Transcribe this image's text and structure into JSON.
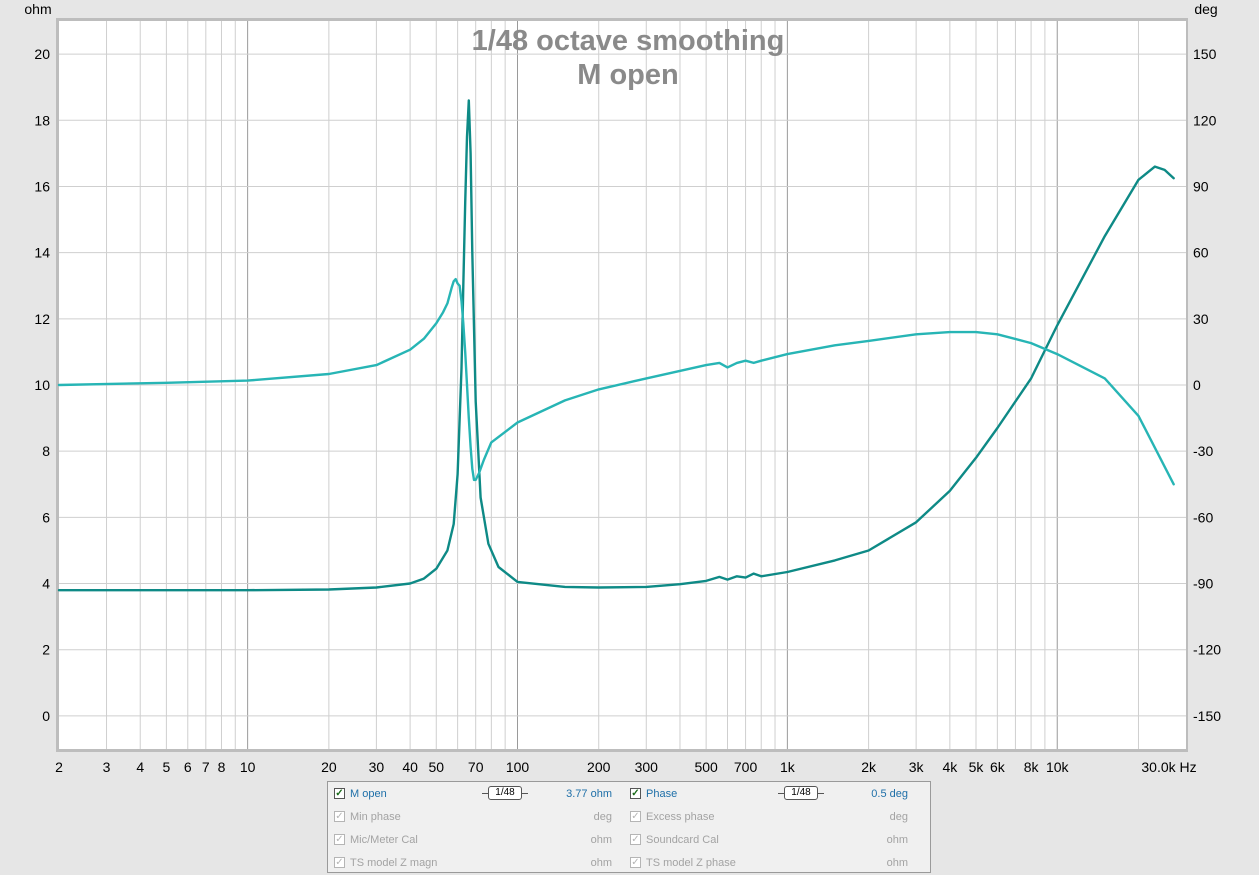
{
  "chart_data": {
    "type": "line",
    "title": "1/48 octave smoothing",
    "subtitle": "M open",
    "x_axis": {
      "unit": "Hz",
      "scale": "log",
      "range": [
        2,
        30000
      ],
      "tick_values": [
        2,
        3,
        4,
        5,
        6,
        7,
        8,
        10,
        20,
        30,
        40,
        50,
        70,
        100,
        200,
        300,
        500,
        700,
        1000,
        2000,
        3000,
        4000,
        5000,
        6000,
        8000,
        10000,
        30000
      ],
      "tick_labels": [
        "2",
        "3",
        "4",
        "5",
        "6",
        "7",
        "8",
        "10",
        "20",
        "30",
        "40",
        "50",
        "70",
        "100",
        "200",
        "300",
        "500",
        "700",
        "1k",
        "2k",
        "3k",
        "4k",
        "5k",
        "6k",
        "8k",
        "10k",
        "30.0k Hz"
      ]
    },
    "y_left": {
      "unit": "ohm",
      "range": [
        -1,
        21
      ],
      "ticks": [
        0,
        2,
        4,
        6,
        8,
        10,
        12,
        14,
        16,
        18,
        20
      ]
    },
    "y_right": {
      "unit": "deg",
      "range": [
        -165,
        165
      ],
      "ticks": [
        150,
        120,
        90,
        60,
        30,
        0,
        -30,
        -60,
        -90,
        -120,
        -150
      ]
    },
    "grid": true,
    "series": [
      {
        "name": "M open",
        "axis": "left",
        "color": "#0e8a86",
        "x": [
          2,
          5,
          10,
          20,
          30,
          40,
          45,
          50,
          55,
          58,
          60,
          62,
          63,
          64,
          65,
          66,
          67,
          68,
          70,
          73,
          78,
          85,
          100,
          150,
          200,
          300,
          400,
          500,
          560,
          600,
          650,
          700,
          750,
          800,
          1000,
          1500,
          2000,
          3000,
          4000,
          5000,
          6000,
          8000,
          10000,
          15000,
          20000,
          23000,
          25000,
          27000
        ],
        "y": [
          3.8,
          3.8,
          3.8,
          3.82,
          3.88,
          4.0,
          4.15,
          4.45,
          5.0,
          5.8,
          7.3,
          10.5,
          13.0,
          15.5,
          17.5,
          18.6,
          17.0,
          14.0,
          9.5,
          6.6,
          5.2,
          4.5,
          4.05,
          3.9,
          3.88,
          3.9,
          3.98,
          4.08,
          4.2,
          4.12,
          4.22,
          4.18,
          4.3,
          4.22,
          4.35,
          4.7,
          5.0,
          5.85,
          6.8,
          7.8,
          8.7,
          10.2,
          11.8,
          14.5,
          16.2,
          16.6,
          16.5,
          16.25
        ]
      },
      {
        "name": "Phase",
        "axis": "right",
        "color": "#27b5b5",
        "x": [
          2,
          5,
          10,
          20,
          30,
          40,
          45,
          50,
          53,
          55,
          57,
          58,
          59,
          60,
          61,
          62,
          63,
          64,
          65,
          66,
          67,
          68,
          69,
          70,
          72,
          75,
          80,
          100,
          150,
          200,
          300,
          500,
          560,
          600,
          650,
          700,
          750,
          800,
          1000,
          1500,
          2000,
          3000,
          4000,
          5000,
          6000,
          8000,
          10000,
          15000,
          20000,
          27000
        ],
        "y": [
          0,
          1,
          2,
          5,
          9,
          16,
          21,
          28,
          33,
          37,
          44,
          47,
          48,
          46,
          45,
          38,
          28,
          15,
          0,
          -15,
          -28,
          -38,
          -43,
          -43,
          -40,
          -34,
          -26,
          -17,
          -7,
          -2,
          3,
          9,
          10,
          8,
          10,
          11,
          10,
          11,
          14,
          18,
          20,
          23,
          24,
          24,
          23,
          19,
          14,
          3,
          -14,
          -45
        ]
      }
    ]
  },
  "legend": {
    "rows": [
      {
        "left": {
          "label": "M open",
          "value": "3.77 ohm",
          "checked": true,
          "active": true,
          "smoothing": "1/48"
        },
        "right": {
          "label": "Phase",
          "value": "0.5 deg",
          "checked": true,
          "active": true,
          "smoothing": "1/48"
        }
      },
      {
        "left": {
          "label": "Min phase",
          "value": "deg",
          "checked": true,
          "active": false
        },
        "right": {
          "label": "Excess phase",
          "value": "deg",
          "checked": true,
          "active": false
        }
      },
      {
        "left": {
          "label": "Mic/Meter Cal",
          "value": "ohm",
          "checked": true,
          "active": false
        },
        "right": {
          "label": "Soundcard Cal",
          "value": "ohm",
          "checked": true,
          "active": false
        }
      },
      {
        "left": {
          "label": "TS model Z magn",
          "value": "ohm",
          "checked": true,
          "active": false
        },
        "right": {
          "label": "TS model Z phase",
          "value": "ohm",
          "checked": true,
          "active": false
        }
      }
    ],
    "check_glyph": "✓"
  }
}
